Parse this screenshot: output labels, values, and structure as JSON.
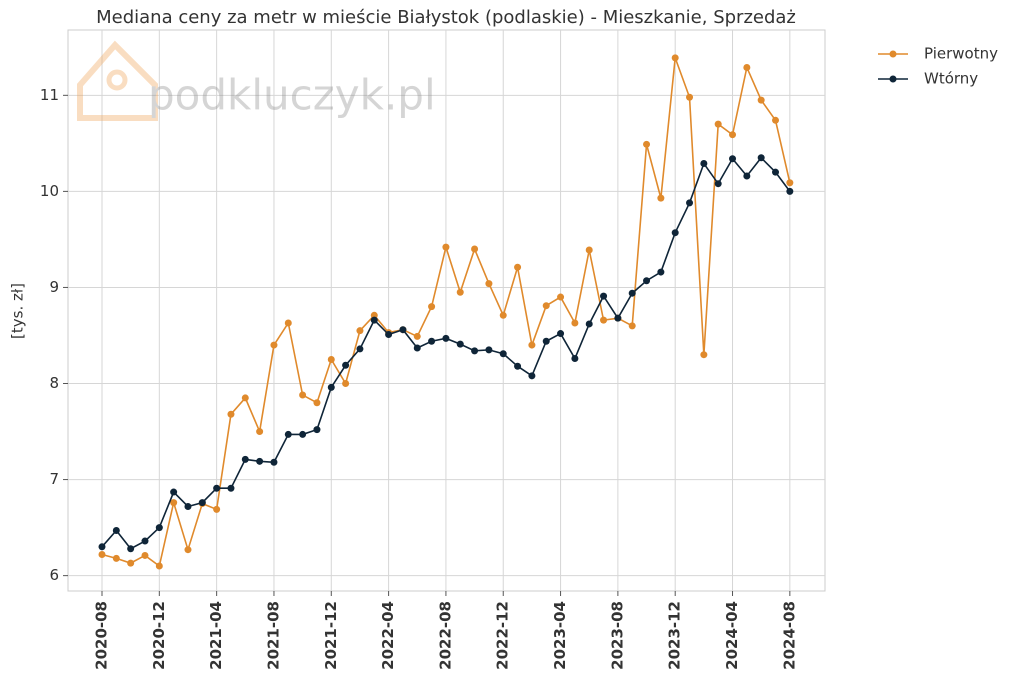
{
  "chart_data": {
    "type": "line",
    "title": "Mediana ceny za metr w mieście Białystok (podlaskie) - Mieszkanie, Sprzedaż",
    "y_label": "[tys. zł]",
    "watermark": "podkluczyk.pl",
    "categories": [
      "2020-08",
      null,
      null,
      null,
      "2020-12",
      null,
      null,
      null,
      "2021-04",
      null,
      null,
      null,
      "2021-08",
      null,
      null,
      null,
      "2021-12",
      null,
      null,
      null,
      "2022-04",
      null,
      null,
      null,
      "2022-08",
      null,
      null,
      null,
      "2022-12",
      null,
      null,
      null,
      "2023-04",
      null,
      null,
      null,
      "2023-08",
      null,
      null,
      null,
      "2023-12",
      null,
      null,
      null,
      "2024-04",
      null,
      null,
      null,
      "2024-08"
    ],
    "series": [
      {
        "name": "Pierwotny",
        "color": "#e08a2c",
        "values": [
          6.22,
          6.18,
          6.13,
          6.21,
          6.1,
          6.76,
          6.27,
          6.75,
          6.69,
          7.68,
          7.85,
          7.5,
          8.4,
          8.63,
          7.88,
          7.8,
          8.25,
          8.0,
          8.55,
          8.71,
          8.53,
          8.56,
          8.49,
          8.8,
          9.42,
          8.95,
          9.4,
          9.04,
          8.71,
          9.21,
          8.4,
          8.81,
          8.9,
          8.63,
          9.39,
          8.66,
          8.68,
          8.6,
          10.49,
          9.93,
          11.39,
          10.98,
          8.3,
          10.7,
          10.59,
          11.29,
          10.95,
          10.74,
          10.09
        ]
      },
      {
        "name": "Wtórny",
        "color": "#0f2538",
        "values": [
          6.3,
          6.47,
          6.28,
          6.36,
          6.5,
          6.87,
          6.72,
          6.76,
          6.91,
          6.91,
          7.21,
          7.19,
          7.18,
          7.47,
          7.47,
          7.52,
          7.96,
          8.19,
          8.36,
          8.66,
          8.51,
          8.56,
          8.37,
          8.44,
          8.47,
          8.41,
          8.34,
          8.35,
          8.31,
          8.18,
          8.08,
          8.44,
          8.52,
          8.26,
          8.62,
          8.91,
          8.68,
          8.94,
          9.07,
          9.16,
          9.57,
          9.88,
          10.29,
          10.08,
          10.34,
          10.16,
          10.35,
          10.2,
          10.0
        ]
      }
    ],
    "ylim": [
      5.84,
      11.68
    ],
    "yticks": [
      6,
      7,
      8,
      9,
      10,
      11
    ],
    "grid": true,
    "legend": "outside-top-right"
  }
}
